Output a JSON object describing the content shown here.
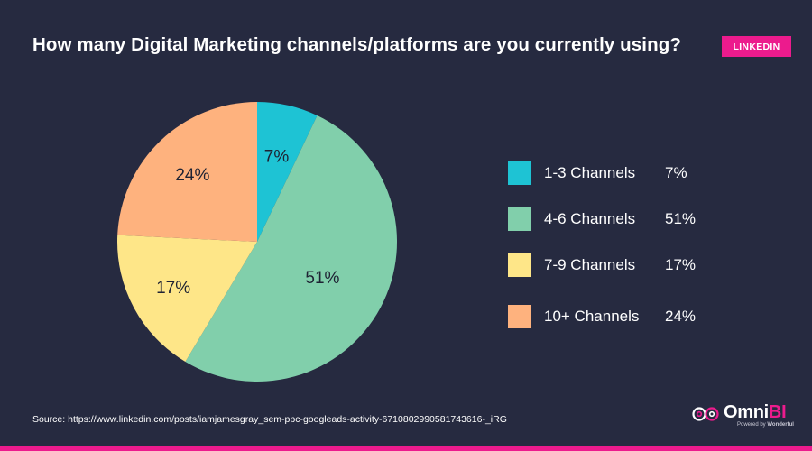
{
  "header": {
    "title": "How many Digital Marketing channels/platforms are you currently using?",
    "badge": "LINKEDIN"
  },
  "chart_data": {
    "type": "pie",
    "title": "How many Digital Marketing channels/platforms are you currently using?",
    "categories": [
      "1-3 Channels",
      "4-6 Channels",
      "7-9 Channels",
      "10+ Channels"
    ],
    "values": [
      7,
      51,
      17,
      24
    ],
    "value_labels": [
      "7%",
      "51%",
      "17%",
      "24%"
    ],
    "colors": [
      "#1ec3d4",
      "#81cfab",
      "#fee688",
      "#feb27e"
    ],
    "start_angle": "12 o'clock",
    "direction": "clockwise",
    "legend_position": "right"
  },
  "legend": {
    "items": [
      {
        "label": "1-3 Channels",
        "value": "7%",
        "color": "#1ec3d4"
      },
      {
        "label": "4-6 Channels",
        "value": "51%",
        "color": "#81cfab"
      },
      {
        "label": "7-9 Channels",
        "value": "17%",
        "color": "#fee688"
      },
      {
        "label": "10+ Channels",
        "value": "24%",
        "color": "#feb27e"
      }
    ]
  },
  "footer": {
    "source": "Source: https://www.linkedin.com/posts/iamjamesgray_sem-ppc-googleads-activity-6710802990581743616-_iRG",
    "logo_main": "Omni",
    "logo_accent": "BI",
    "logo_tagline_prefix": "Powered by ",
    "logo_tagline_brand": "Wonderful"
  },
  "colors": {
    "background": "#262a40",
    "accent": "#ec1b8d"
  }
}
